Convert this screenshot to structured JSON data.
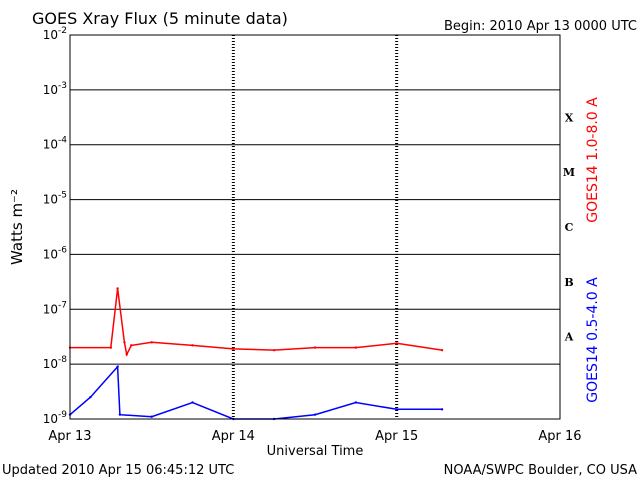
{
  "header": {
    "title": "GOES Xray Flux (5 minute data)",
    "begin": "Begin:  2010 Apr 13 0000 UTC"
  },
  "footer": {
    "updated": "Updated 2010 Apr 15 06:45:12 UTC",
    "credit": "NOAA/SWPC Boulder, CO USA"
  },
  "chart_data": {
    "type": "line",
    "title": "GOES Xray Flux (5 minute data)",
    "xlabel": "Universal Time",
    "ylabel": "Watts m⁻²",
    "yscale": "log",
    "ylim": [
      1e-09,
      0.01
    ],
    "xlim": [
      "2010-04-13",
      "2010-04-16"
    ],
    "x_ticks": [
      "Apr 13",
      "Apr 14",
      "Apr 15",
      "Apr 16"
    ],
    "y_ticks": [
      {
        "base": "10",
        "exp": "-9"
      },
      {
        "base": "10",
        "exp": "-8"
      },
      {
        "base": "10",
        "exp": "-7"
      },
      {
        "base": "10",
        "exp": "-6"
      },
      {
        "base": "10",
        "exp": "-5"
      },
      {
        "base": "10",
        "exp": "-4"
      },
      {
        "base": "10",
        "exp": "-3"
      },
      {
        "base": "10",
        "exp": "-2"
      }
    ],
    "flare_classes": [
      "A",
      "B",
      "C",
      "M",
      "X"
    ],
    "grid": true,
    "series": [
      {
        "name": "GOES14 1.0-8.0 A",
        "color": "#ff0000",
        "x": [
          "2010-04-13 00:00",
          "2010-04-13 06:00",
          "2010-04-13 07:00",
          "2010-04-13 08:00",
          "2010-04-13 08:20",
          "2010-04-13 09:00",
          "2010-04-13 12:00",
          "2010-04-13 18:00",
          "2010-04-14 00:00",
          "2010-04-14 06:00",
          "2010-04-14 12:00",
          "2010-04-14 18:00",
          "2010-04-15 00:00",
          "2010-04-15 06:40"
        ],
        "y": [
          2e-08,
          2e-08,
          2.4e-07,
          2.5e-08,
          1.5e-08,
          2.2e-08,
          2.5e-08,
          2.2e-08,
          1.9e-08,
          1.8e-08,
          2e-08,
          2e-08,
          2.4e-08,
          1.8e-08
        ]
      },
      {
        "name": "GOES14 0.5-4.0 A",
        "color": "#0000ff",
        "x": [
          "2010-04-13 00:00",
          "2010-04-13 03:00",
          "2010-04-13 07:00",
          "2010-04-13 07:20",
          "2010-04-13 12:00",
          "2010-04-13 18:00",
          "2010-04-14 00:00",
          "2010-04-14 06:00",
          "2010-04-14 12:00",
          "2010-04-14 18:00",
          "2010-04-15 00:00",
          "2010-04-15 06:40"
        ],
        "y": [
          1.2e-09,
          2.5e-09,
          9e-09,
          1.2e-09,
          1.1e-09,
          2e-09,
          1e-09,
          1e-09,
          1.2e-09,
          2e-09,
          1.5e-09,
          1.5e-09
        ]
      }
    ]
  }
}
